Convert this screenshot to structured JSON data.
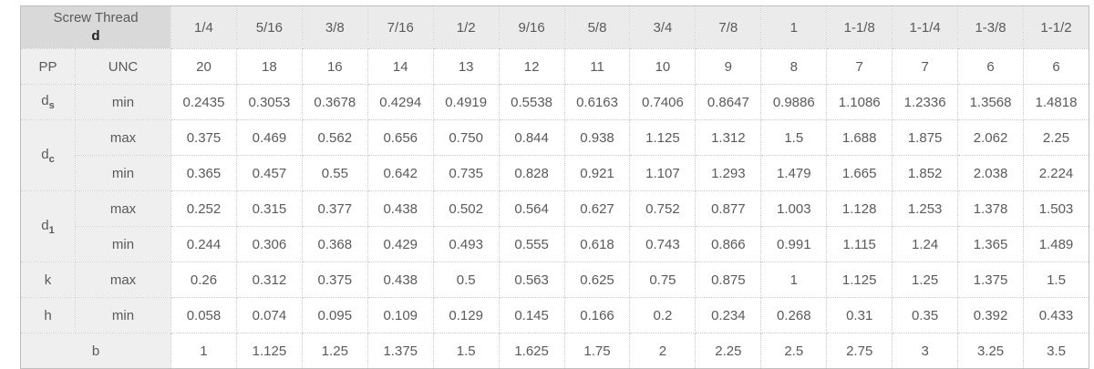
{
  "colors": {
    "accent_blue": "#2b70b8",
    "corner_bg": "#d9d9d9",
    "header_bg": "#ebebeb",
    "label_bg": "#efefef"
  },
  "table": {
    "corner_title": "Screw Thread",
    "corner_subtitle": "d",
    "sizes": [
      "1/4",
      "5/16",
      "3/8",
      "7/16",
      "1/2",
      "9/16",
      "5/8",
      "3/4",
      "7/8",
      "1",
      "1-1/8",
      "1-1/4",
      "1-3/8",
      "1-1/2"
    ],
    "rows": {
      "pp": {
        "label": "PP",
        "qualifier": "UNC",
        "values": [
          "20",
          "18",
          "16",
          "14",
          "13",
          "12",
          "11",
          "10",
          "9",
          "8",
          "7",
          "7",
          "6",
          "6"
        ]
      },
      "ds": {
        "label": "d",
        "sub": "s",
        "qualifier": "min",
        "values": [
          "0.2435",
          "0.3053",
          "0.3678",
          "0.4294",
          "0.4919",
          "0.5538",
          "0.6163",
          "0.7406",
          "0.8647",
          "0.9886",
          "1.1086",
          "1.2336",
          "1.3568",
          "1.4818"
        ]
      },
      "dc_max": {
        "label": "d",
        "sub": "c",
        "qualifier": "max",
        "values": [
          "0.375",
          "0.469",
          "0.562",
          "0.656",
          "0.750",
          "0.844",
          "0.938",
          "1.125",
          "1.312",
          "1.5",
          "1.688",
          "1.875",
          "2.062",
          "2.25"
        ]
      },
      "dc_min": {
        "qualifier": "min",
        "values": [
          "0.365",
          "0.457",
          "0.55",
          "0.642",
          "0.735",
          "0.828",
          "0.921",
          "1.107",
          "1.293",
          "1.479",
          "1.665",
          "1.852",
          "2.038",
          "2.224"
        ]
      },
      "d1_max": {
        "label": "d",
        "sub": "1",
        "qualifier": "max",
        "values": [
          "0.252",
          "0.315",
          "0.377",
          "0.438",
          "0.502",
          "0.564",
          "0.627",
          "0.752",
          "0.877",
          "1.003",
          "1.128",
          "1.253",
          "1.378",
          "1.503"
        ]
      },
      "d1_min": {
        "qualifier": "min",
        "values": [
          "0.244",
          "0.306",
          "0.368",
          "0.429",
          "0.493",
          "0.555",
          "0.618",
          "0.743",
          "0.866",
          "0.991",
          "1.115",
          "1.24",
          "1.365",
          "1.489"
        ]
      },
      "k": {
        "label": "k",
        "qualifier": "max",
        "values": [
          "0.26",
          "0.312",
          "0.375",
          "0.438",
          "0.5",
          "0.563",
          "0.625",
          "0.75",
          "0.875",
          "1",
          "1.125",
          "1.25",
          "1.375",
          "1.5"
        ]
      },
      "h": {
        "label": "h",
        "qualifier": "min",
        "values": [
          "0.058",
          "0.074",
          "0.095",
          "0.109",
          "0.129",
          "0.145",
          "0.166",
          "0.2",
          "0.234",
          "0.268",
          "0.31",
          "0.35",
          "0.392",
          "0.433"
        ]
      },
      "b": {
        "label": "b",
        "values": [
          "1",
          "1.125",
          "1.25",
          "1.375",
          "1.5",
          "1.625",
          "1.75",
          "2",
          "2.25",
          "2.5",
          "2.75",
          "3",
          "3.25",
          "3.5"
        ]
      }
    }
  }
}
